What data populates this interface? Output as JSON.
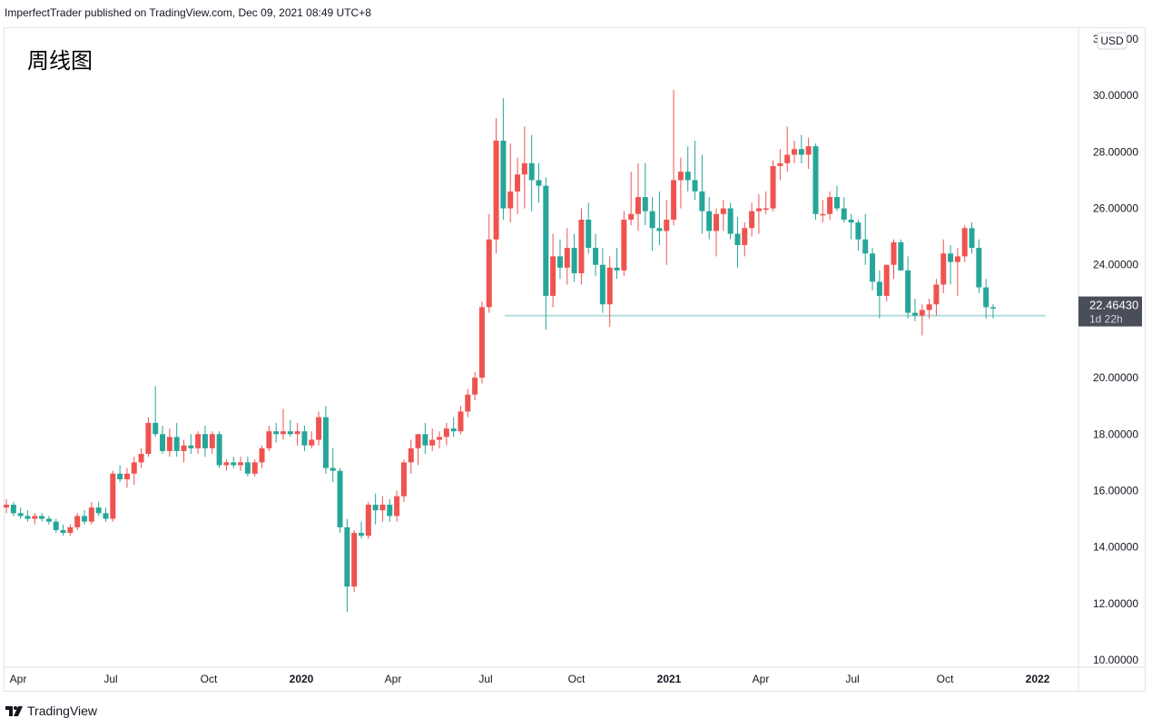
{
  "header": {
    "publisher_text": "ImperfectTrader published on TradingView.com, Dec 09, 2021 08:49 UTC+8"
  },
  "footer": {
    "brand": "TradingView"
  },
  "colors": {
    "up": "#ef5350",
    "down": "#26a69a",
    "support_line": "#b2dfdb",
    "price_tag_bg": "#4a4e59"
  },
  "chart_data": {
    "type": "candlestick",
    "title": "周线图",
    "currency_badge": "USD",
    "last_price_label": "22.46430",
    "countdown_label": "1d 22h",
    "ylim": [
      10,
      32
    ],
    "y_ticks": [
      "32.00000",
      "30.00000",
      "28.00000",
      "26.00000",
      "24.00000",
      "22.00000",
      "20.00000",
      "18.00000",
      "16.00000",
      "14.00000",
      "12.00000",
      "10.00000"
    ],
    "x_ticks": [
      {
        "label": "Apr",
        "bold": false
      },
      {
        "label": "Jul",
        "bold": false
      },
      {
        "label": "Oct",
        "bold": false
      },
      {
        "label": "2020",
        "bold": true
      },
      {
        "label": "Apr",
        "bold": false
      },
      {
        "label": "Jul",
        "bold": false
      },
      {
        "label": "Oct",
        "bold": false
      },
      {
        "label": "2021",
        "bold": true
      },
      {
        "label": "Apr",
        "bold": false
      },
      {
        "label": "Jul",
        "bold": false
      },
      {
        "label": "Oct",
        "bold": false
      },
      {
        "label": "2022",
        "bold": true
      }
    ],
    "support_level": 22.2,
    "candles": [
      [
        15.4,
        15.7,
        15.2,
        15.5
      ],
      [
        15.5,
        15.6,
        15.1,
        15.2
      ],
      [
        15.2,
        15.4,
        15.0,
        15.1
      ],
      [
        15.1,
        15.3,
        14.9,
        15.0
      ],
      [
        15.0,
        15.2,
        14.8,
        15.1
      ],
      [
        15.1,
        15.2,
        14.9,
        15.0
      ],
      [
        15.0,
        15.1,
        14.8,
        14.9
      ],
      [
        14.9,
        15.0,
        14.5,
        14.6
      ],
      [
        14.6,
        14.8,
        14.4,
        14.5
      ],
      [
        14.5,
        14.8,
        14.4,
        14.7
      ],
      [
        14.7,
        15.2,
        14.6,
        15.1
      ],
      [
        15.1,
        15.3,
        14.8,
        14.9
      ],
      [
        14.9,
        15.6,
        14.8,
        15.4
      ],
      [
        15.4,
        15.6,
        15.1,
        15.2
      ],
      [
        15.2,
        15.4,
        14.9,
        15.0
      ],
      [
        15.0,
        16.7,
        14.9,
        16.6
      ],
      [
        16.6,
        16.9,
        16.3,
        16.4
      ],
      [
        16.4,
        16.8,
        16.1,
        16.6
      ],
      [
        16.6,
        17.2,
        16.2,
        17.0
      ],
      [
        17.0,
        17.5,
        16.8,
        17.3
      ],
      [
        17.3,
        18.6,
        17.2,
        18.4
      ],
      [
        18.4,
        19.7,
        17.9,
        18.0
      ],
      [
        18.0,
        18.3,
        17.3,
        17.4
      ],
      [
        17.4,
        18.2,
        17.2,
        17.9
      ],
      [
        17.9,
        18.4,
        17.2,
        17.4
      ],
      [
        17.4,
        17.8,
        17.0,
        17.6
      ],
      [
        17.6,
        18.0,
        17.3,
        17.5
      ],
      [
        17.5,
        18.1,
        17.3,
        18.0
      ],
      [
        18.0,
        18.3,
        17.2,
        17.5
      ],
      [
        17.5,
        18.1,
        17.3,
        18.0
      ],
      [
        18.0,
        18.1,
        16.8,
        16.9
      ],
      [
        16.9,
        17.1,
        16.7,
        17.0
      ],
      [
        17.0,
        17.2,
        16.8,
        16.9
      ],
      [
        16.9,
        17.2,
        16.7,
        17.0
      ],
      [
        17.0,
        17.2,
        16.5,
        16.6
      ],
      [
        16.6,
        17.1,
        16.5,
        17.0
      ],
      [
        17.0,
        17.6,
        16.8,
        17.5
      ],
      [
        17.5,
        18.3,
        17.4,
        18.1
      ],
      [
        18.1,
        18.4,
        17.7,
        18.0
      ],
      [
        18.0,
        18.9,
        17.8,
        18.1
      ],
      [
        18.1,
        18.5,
        17.9,
        18.0
      ],
      [
        18.0,
        18.4,
        17.6,
        18.1
      ],
      [
        18.1,
        18.3,
        17.4,
        17.6
      ],
      [
        17.6,
        18.1,
        17.5,
        17.8
      ],
      [
        17.8,
        18.8,
        17.6,
        18.6
      ],
      [
        18.6,
        19.0,
        16.6,
        16.8
      ],
      [
        16.8,
        17.5,
        16.3,
        16.7
      ],
      [
        16.7,
        16.8,
        14.5,
        14.7
      ],
      [
        14.7,
        15.0,
        11.7,
        12.6
      ],
      [
        12.6,
        14.6,
        12.4,
        14.5
      ],
      [
        14.5,
        14.9,
        14.3,
        14.4
      ],
      [
        14.4,
        15.6,
        14.3,
        15.5
      ],
      [
        15.5,
        15.9,
        14.8,
        15.3
      ],
      [
        15.3,
        15.8,
        14.9,
        15.5
      ],
      [
        15.5,
        15.7,
        14.9,
        15.1
      ],
      [
        15.1,
        16.0,
        14.9,
        15.8
      ],
      [
        15.8,
        17.1,
        15.6,
        17.0
      ],
      [
        17.0,
        17.8,
        16.6,
        17.5
      ],
      [
        17.5,
        18.0,
        16.9,
        18.0
      ],
      [
        18.0,
        18.4,
        17.3,
        17.6
      ],
      [
        17.6,
        18.2,
        17.4,
        17.8
      ],
      [
        17.8,
        18.1,
        17.5,
        17.9
      ],
      [
        17.9,
        18.4,
        17.6,
        18.2
      ],
      [
        18.2,
        18.6,
        17.9,
        18.1
      ],
      [
        18.1,
        19.0,
        18.0,
        18.8
      ],
      [
        18.8,
        19.6,
        18.6,
        19.4
      ],
      [
        19.4,
        20.2,
        19.2,
        20.0
      ],
      [
        20.0,
        22.7,
        19.8,
        22.5
      ],
      [
        22.5,
        25.8,
        22.3,
        24.9
      ],
      [
        24.9,
        29.2,
        24.4,
        28.4
      ],
      [
        28.4,
        29.9,
        25.6,
        26.0
      ],
      [
        26.0,
        28.3,
        25.5,
        26.6
      ],
      [
        26.6,
        27.8,
        25.8,
        27.2
      ],
      [
        27.2,
        28.9,
        26.0,
        27.6
      ],
      [
        27.6,
        28.6,
        25.9,
        27.0
      ],
      [
        27.0,
        27.6,
        26.2,
        26.8
      ],
      [
        26.8,
        27.1,
        21.7,
        22.9
      ],
      [
        22.9,
        25.1,
        22.5,
        24.3
      ],
      [
        24.3,
        24.9,
        23.5,
        23.9
      ],
      [
        23.9,
        25.3,
        23.3,
        24.6
      ],
      [
        24.6,
        25.1,
        23.4,
        23.7
      ],
      [
        23.7,
        26.0,
        23.3,
        25.6
      ],
      [
        25.6,
        26.2,
        24.4,
        24.6
      ],
      [
        24.6,
        25.1,
        23.6,
        24.0
      ],
      [
        24.0,
        24.6,
        22.3,
        22.6
      ],
      [
        22.6,
        24.3,
        21.8,
        23.9
      ],
      [
        23.9,
        24.6,
        23.5,
        23.8
      ],
      [
        23.8,
        25.9,
        23.6,
        25.6
      ],
      [
        25.6,
        27.3,
        25.4,
        25.8
      ],
      [
        25.8,
        27.6,
        25.2,
        26.4
      ],
      [
        26.4,
        27.6,
        25.4,
        25.9
      ],
      [
        25.9,
        26.4,
        24.5,
        25.3
      ],
      [
        25.3,
        26.6,
        24.7,
        25.2
      ],
      [
        25.2,
        26.3,
        24.0,
        25.6
      ],
      [
        25.6,
        30.2,
        25.4,
        27.0
      ],
      [
        27.0,
        27.8,
        26.0,
        27.3
      ],
      [
        27.3,
        28.2,
        26.6,
        27.0
      ],
      [
        27.0,
        28.4,
        26.3,
        26.6
      ],
      [
        26.6,
        27.9,
        25.1,
        25.9
      ],
      [
        25.9,
        26.4,
        24.9,
        25.2
      ],
      [
        25.2,
        26.0,
        24.3,
        25.8
      ],
      [
        25.8,
        26.3,
        25.2,
        26.0
      ],
      [
        26.0,
        26.2,
        24.9,
        25.1
      ],
      [
        25.1,
        25.7,
        23.9,
        24.7
      ],
      [
        24.7,
        25.5,
        24.3,
        25.3
      ],
      [
        25.3,
        26.2,
        25.0,
        25.9
      ],
      [
        25.9,
        26.5,
        25.1,
        26.0
      ],
      [
        26.0,
        26.6,
        25.8,
        26.0
      ],
      [
        26.0,
        27.7,
        25.9,
        27.5
      ],
      [
        27.5,
        28.1,
        27.0,
        27.6
      ],
      [
        27.6,
        28.9,
        27.3,
        27.9
      ],
      [
        27.9,
        28.4,
        27.6,
        28.1
      ],
      [
        28.1,
        28.6,
        27.6,
        27.9
      ],
      [
        27.9,
        28.5,
        27.4,
        28.2
      ],
      [
        28.2,
        28.3,
        25.6,
        25.8
      ],
      [
        25.8,
        26.3,
        25.5,
        25.8
      ],
      [
        25.8,
        26.6,
        25.6,
        26.4
      ],
      [
        26.4,
        26.8,
        25.9,
        26.0
      ],
      [
        26.0,
        26.4,
        25.5,
        25.6
      ],
      [
        25.6,
        25.8,
        24.9,
        25.5
      ],
      [
        25.5,
        25.6,
        24.5,
        24.9
      ],
      [
        24.9,
        25.8,
        24.0,
        24.4
      ],
      [
        24.4,
        24.6,
        23.1,
        23.4
      ],
      [
        23.4,
        23.8,
        22.1,
        22.9
      ],
      [
        22.9,
        24.0,
        22.7,
        24.0
      ],
      [
        24.0,
        24.9,
        23.5,
        24.8
      ],
      [
        24.8,
        24.9,
        23.8,
        23.8
      ],
      [
        23.8,
        24.3,
        22.1,
        22.3
      ],
      [
        22.3,
        22.8,
        22.0,
        22.2
      ],
      [
        22.2,
        22.6,
        21.5,
        22.4
      ],
      [
        22.4,
        22.8,
        22.1,
        22.6
      ],
      [
        22.6,
        23.5,
        22.2,
        23.3
      ],
      [
        23.3,
        24.9,
        23.0,
        24.4
      ],
      [
        24.4,
        24.7,
        23.3,
        24.1
      ],
      [
        24.1,
        24.6,
        22.9,
        24.3
      ],
      [
        24.3,
        25.4,
        24.1,
        25.3
      ],
      [
        25.3,
        25.5,
        24.4,
        24.6
      ],
      [
        24.6,
        24.9,
        23.0,
        23.2
      ],
      [
        23.2,
        23.5,
        22.1,
        22.5
      ],
      [
        22.5,
        22.6,
        22.1,
        22.46
      ]
    ]
  }
}
